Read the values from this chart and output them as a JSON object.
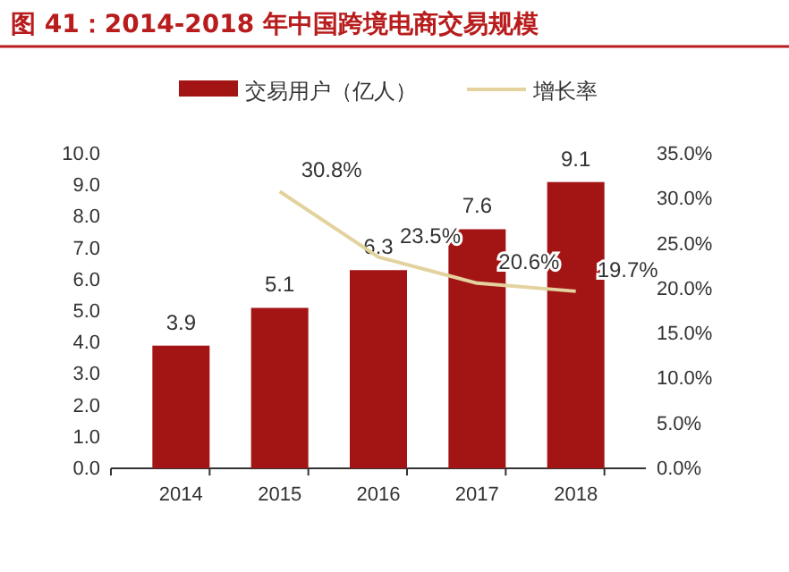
{
  "chart_data": {
    "type": "bar",
    "title": "图 41：2014-2018 年中国跨境电商交易规模",
    "categories": [
      "2014",
      "2015",
      "2016",
      "2017",
      "2018"
    ],
    "series": [
      {
        "name": "交易用户（亿人）",
        "color": "#a31515",
        "values": [
          3.9,
          5.1,
          6.3,
          7.6,
          9.1
        ],
        "value_labels": [
          "3.9",
          "5.1",
          "6.3",
          "7.6",
          "9.1"
        ]
      },
      {
        "name": "增长率",
        "type": "line",
        "axis": "y2",
        "color": "#e3d29d",
        "values": [
          null,
          30.8,
          23.5,
          20.6,
          19.7
        ],
        "value_labels": [
          null,
          "30.8%",
          "23.5%",
          "20.6%",
          "19.7%"
        ]
      }
    ],
    "ylim": [
      0,
      10
    ],
    "yticks": [
      {
        "value": 0,
        "label": "0.0"
      },
      {
        "value": 1,
        "label": "1.0"
      },
      {
        "value": 2,
        "label": "2.0"
      },
      {
        "value": 3,
        "label": "3.0"
      },
      {
        "value": 4,
        "label": "4.0"
      },
      {
        "value": 5,
        "label": "5.0"
      },
      {
        "value": 6,
        "label": "6.0"
      },
      {
        "value": 7,
        "label": "7.0"
      },
      {
        "value": 8,
        "label": "8.0"
      },
      {
        "value": 9,
        "label": "9.0"
      },
      {
        "value": 10,
        "label": "10.0"
      }
    ],
    "y2lim": [
      0,
      35
    ],
    "y2ticks": [
      {
        "value": 0,
        "label": "0.0%"
      },
      {
        "value": 5,
        "label": "5.0%"
      },
      {
        "value": 10,
        "label": "10.0%"
      },
      {
        "value": 15,
        "label": "15.0%"
      },
      {
        "value": 20,
        "label": "20.0%"
      },
      {
        "value": 25,
        "label": "25.0%"
      },
      {
        "value": 30,
        "label": "30.0%"
      },
      {
        "value": 35,
        "label": "35.0%"
      }
    ],
    "legend": "top",
    "grid": false,
    "marker": "none"
  }
}
